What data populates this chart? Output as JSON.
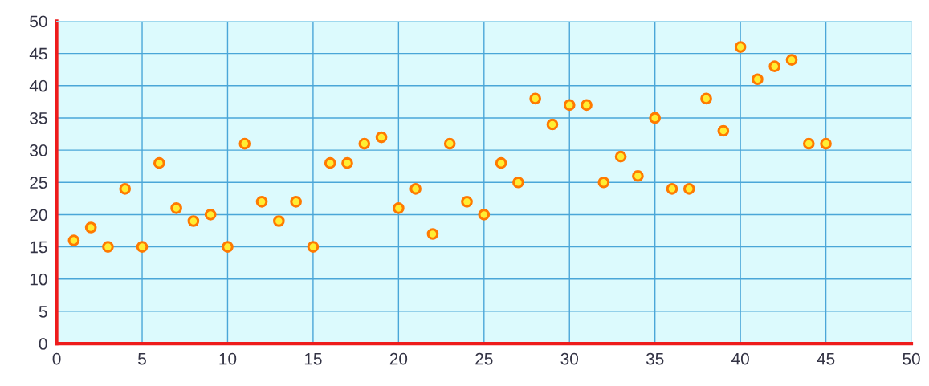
{
  "chart_data": {
    "type": "scatter",
    "x": [
      1,
      2,
      3,
      4,
      5,
      6,
      7,
      8,
      9,
      10,
      11,
      12,
      13,
      14,
      15,
      16,
      17,
      18,
      19,
      20,
      21,
      22,
      23,
      24,
      25,
      26,
      27,
      28,
      29,
      30,
      31,
      32,
      33,
      34,
      35,
      36,
      37,
      38,
      39,
      40,
      41,
      42,
      43,
      44,
      45
    ],
    "series": [
      {
        "color": "#ff7a00",
        "values": [
          16,
          18,
          15,
          24,
          15,
          28,
          21,
          19,
          20,
          15,
          31,
          22,
          19,
          22,
          15,
          28,
          28,
          31,
          32,
          21,
          24,
          17,
          31,
          22,
          20,
          28,
          25,
          38,
          34,
          37,
          37,
          25,
          29,
          26,
          35,
          24,
          24,
          38,
          33,
          46,
          41,
          43,
          44,
          31,
          31
        ]
      }
    ],
    "xlim": [
      0,
      50
    ],
    "xticks": [
      0,
      5,
      10,
      15,
      20,
      25,
      30,
      35,
      40,
      45,
      50
    ],
    "ylim": [
      0,
      50
    ],
    "yticks": [
      0,
      5,
      10,
      15,
      20,
      25,
      30,
      35,
      40,
      45,
      50
    ],
    "grid": true,
    "marker": "circle"
  }
}
